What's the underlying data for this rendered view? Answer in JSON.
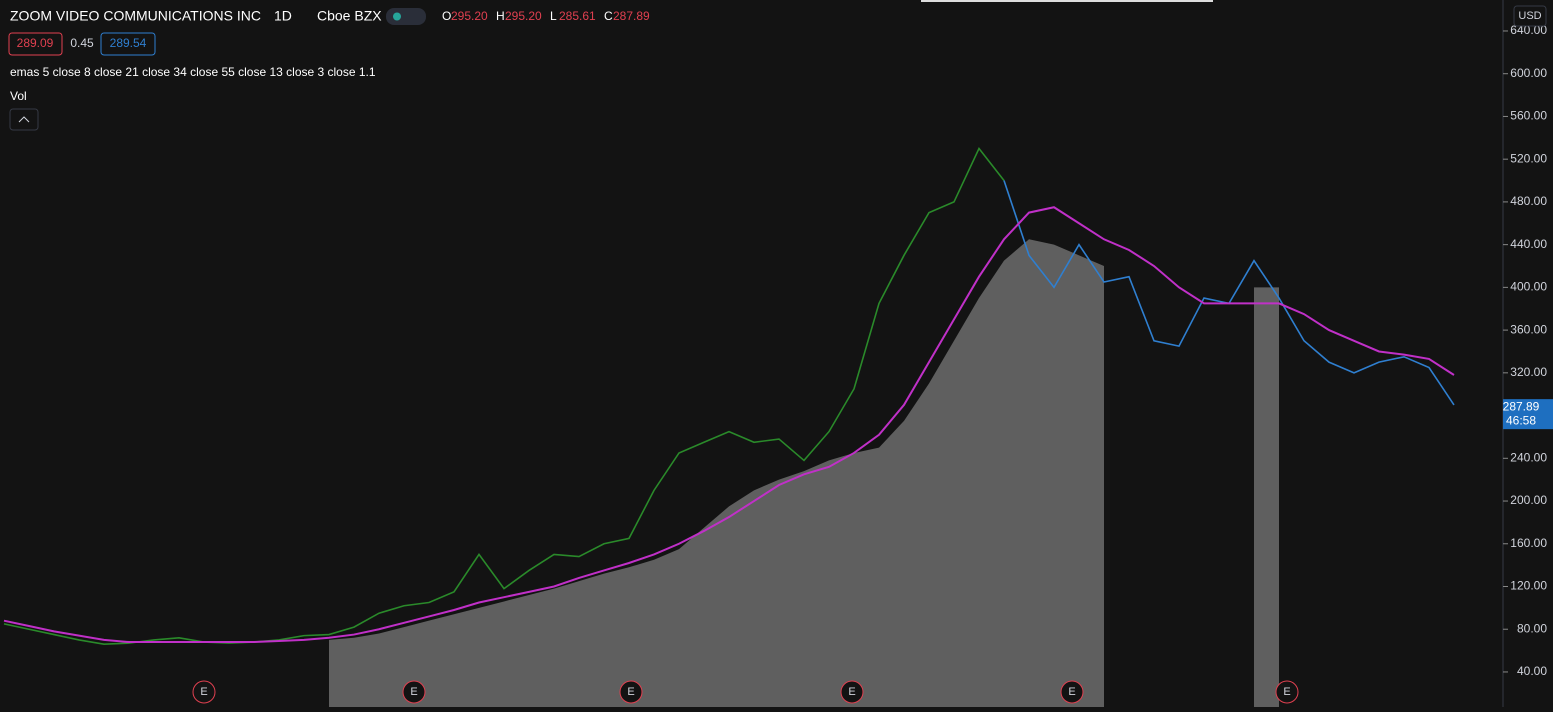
{
  "header": {
    "title": "ZOOM VIDEO COMMUNICATIONS INC",
    "interval": "1D",
    "exchange": "Cboe BZX",
    "ohlc": [
      {
        "label": "O",
        "value": "295.20"
      },
      {
        "label": "H",
        "value": "295.20"
      },
      {
        "label": "L",
        "value": "285.61"
      },
      {
        "label": "C",
        "value": "287.89"
      }
    ],
    "bid": "289.09",
    "spread": "0.45",
    "ask": "289.54",
    "indicator": "emas 5 close 8 close 21 close 34 close 55 close 13 close 3 close 1.1",
    "volume": "Vol"
  },
  "chart_data": {
    "type": "line",
    "currency": "USD",
    "ylim": [
      7.2,
      669.0
    ],
    "yticks": [
      {
        "value": 40,
        "label": "40.00"
      },
      {
        "value": 80,
        "label": "80.00"
      },
      {
        "value": 120,
        "label": "120.00"
      },
      {
        "value": 160,
        "label": "160.00"
      },
      {
        "value": 200,
        "label": "200.00"
      },
      {
        "value": 240,
        "label": "240.00"
      },
      {
        "value": 280,
        "label": "280.00"
      },
      {
        "value": 320,
        "label": "320.00"
      },
      {
        "value": 360,
        "label": "360.00"
      },
      {
        "value": 400,
        "label": "400.00"
      },
      {
        "value": 440,
        "label": "440.00"
      },
      {
        "value": 480,
        "label": "480.00"
      },
      {
        "value": 520,
        "label": "520.00"
      },
      {
        "value": 560,
        "label": "560.00"
      },
      {
        "value": 600,
        "label": "600.00"
      },
      {
        "value": 640,
        "label": "640.00"
      }
    ],
    "last_price": {
      "value": 287.89,
      "label": "287.89",
      "countdown": "46:58"
    },
    "events": [
      "E",
      "E",
      "E",
      "E",
      "E",
      "E"
    ],
    "series": [
      {
        "color": "#9e9e9e",
        "area": true,
        "values": [
          null,
          null,
          null,
          null,
          null,
          null,
          null,
          null,
          null,
          null,
          null,
          null,
          null,
          70,
          72,
          76,
          82,
          88,
          94,
          100,
          106,
          112,
          118,
          125,
          132,
          138,
          145,
          155,
          175,
          195,
          210,
          220,
          228,
          238,
          245,
          250,
          275,
          310,
          350,
          390,
          425,
          445,
          440,
          430,
          420,
          null,
          null,
          null,
          null,
          null,
          400,
          400,
          null,
          null,
          null,
          null,
          null,
          null,
          null
        ]
      },
      {
        "color": "#2a8a2a",
        "values": [
          85,
          80,
          75,
          70,
          66,
          67,
          70,
          72,
          68,
          67,
          68,
          70,
          74,
          75,
          82,
          95,
          102,
          105,
          115,
          150,
          118,
          135,
          150,
          148,
          160,
          165,
          210,
          245,
          255,
          265,
          255,
          258,
          238,
          265,
          305,
          385,
          430,
          470,
          480,
          530,
          500,
          null,
          null,
          null,
          null,
          null,
          null,
          null,
          null,
          null,
          null,
          null,
          null,
          null,
          null,
          null,
          null,
          null,
          null
        ]
      },
      {
        "color": "#2f7fd0",
        "values": [
          null,
          null,
          null,
          null,
          null,
          null,
          null,
          null,
          null,
          null,
          null,
          null,
          null,
          null,
          null,
          null,
          null,
          null,
          null,
          null,
          null,
          null,
          null,
          null,
          null,
          null,
          null,
          null,
          null,
          null,
          null,
          null,
          null,
          null,
          null,
          null,
          null,
          null,
          null,
          null,
          500,
          430,
          400,
          440,
          405,
          410,
          350,
          345,
          390,
          385,
          425,
          390,
          350,
          330,
          320,
          330,
          335,
          325,
          290
        ]
      },
      {
        "color": "#c030c8",
        "values": [
          88,
          83,
          78,
          74,
          70,
          68,
          68,
          68,
          68,
          68,
          68,
          69,
          70,
          72,
          75,
          80,
          86,
          92,
          98,
          105,
          110,
          115,
          120,
          128,
          135,
          142,
          150,
          160,
          172,
          185,
          200,
          215,
          225,
          232,
          245,
          262,
          290,
          330,
          370,
          410,
          445,
          470,
          475,
          460,
          445,
          435,
          420,
          400,
          385,
          385,
          385,
          385,
          375,
          360,
          350,
          340,
          337,
          333,
          318
        ]
      }
    ]
  }
}
